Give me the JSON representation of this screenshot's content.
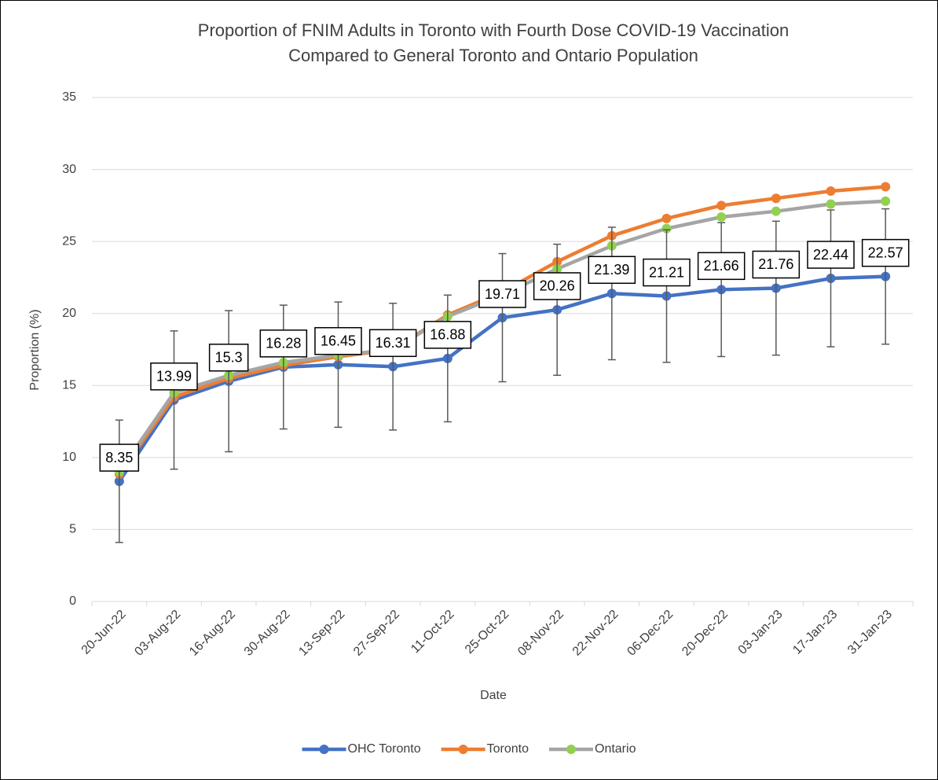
{
  "chart_data": {
    "type": "line",
    "title": [
      "Proportion of FNIM Adults in Toronto with Fourth Dose COVID-19 Vaccination",
      "Compared to General Toronto and Ontario Population"
    ],
    "xlabel": "Date",
    "ylabel": "Proportion (%)",
    "categories": [
      "20-Jun-22",
      "03-Aug-22",
      "16-Aug-22",
      "30-Aug-22",
      "13-Sep-22",
      "27-Sep-22",
      "11-Oct-22",
      "25-Oct-22",
      "08-Nov-22",
      "22-Nov-22",
      "06-Dec-22",
      "20-Dec-22",
      "03-Jan-23",
      "17-Jan-23",
      "31-Jan-23"
    ],
    "series": [
      {
        "name": "OHC Toronto",
        "color": "#4472c4",
        "marker_color": "#4472c4",
        "values": [
          8.35,
          13.99,
          15.3,
          16.28,
          16.45,
          16.31,
          16.88,
          19.71,
          20.26,
          21.39,
          21.21,
          21.66,
          21.76,
          22.44,
          22.57
        ],
        "errors": [
          4.25,
          4.8,
          4.9,
          4.3,
          4.35,
          4.4,
          4.4,
          4.45,
          4.55,
          4.6,
          4.6,
          4.65,
          4.65,
          4.75,
          4.7
        ],
        "data_labels": true
      },
      {
        "name": "Toronto",
        "color": "#ed7d31",
        "marker_color": "#ed7d31",
        "values": [
          8.85,
          14.2,
          15.5,
          16.4,
          17.0,
          17.5,
          19.9,
          21.5,
          23.6,
          25.4,
          26.6,
          27.5,
          28.0,
          28.5,
          28.8
        ]
      },
      {
        "name": "Ontario",
        "color": "#a5a5a5",
        "marker_color": "#92d050",
        "values": [
          9.0,
          14.5,
          15.7,
          16.6,
          17.1,
          17.5,
          19.8,
          21.3,
          23.1,
          24.7,
          25.9,
          26.7,
          27.1,
          27.6,
          27.8
        ]
      }
    ],
    "ylim": [
      0,
      35
    ],
    "yticks": [
      0,
      5,
      10,
      15,
      20,
      25,
      30,
      35
    ],
    "grid": true,
    "legend": "bottom"
  }
}
